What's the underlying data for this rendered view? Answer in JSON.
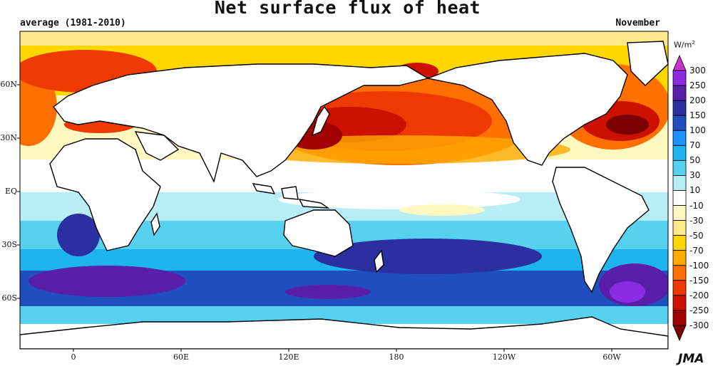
{
  "title": "Net surface flux of heat",
  "period_label": "average (1981-2010)",
  "month_label": "November",
  "unit": "W/m",
  "unit_sup": "2",
  "credit": "JMA",
  "lat_labels": [
    "60N",
    "30N",
    "EQ",
    "30S",
    "60S"
  ],
  "lon_labels": [
    "0",
    "60E",
    "120E",
    "180",
    "120W",
    "60W"
  ],
  "legend": {
    "levels": [
      "300",
      "250",
      "200",
      "150",
      "100",
      "70",
      "50",
      "30",
      "10",
      "-10",
      "-30",
      "-50",
      "-70",
      "-100",
      "-150",
      "-200",
      "-250",
      "-300"
    ],
    "colors": [
      "#cc33cc",
      "#8a2be2",
      "#5a1fa8",
      "#2b2fa0",
      "#1f4fbf",
      "#1e90ff",
      "#1eb4f0",
      "#56d2f0",
      "#b8eef5",
      "#ffffff",
      "#fff8c0",
      "#ffe88a",
      "#ffd700",
      "#ffaa00",
      "#ff7000",
      "#ee3a00",
      "#cc1100",
      "#a00000",
      "#7a0000"
    ]
  },
  "colors": {
    "land": "#ffffff",
    "coast": "#000000",
    "background": "#ffffff"
  }
}
